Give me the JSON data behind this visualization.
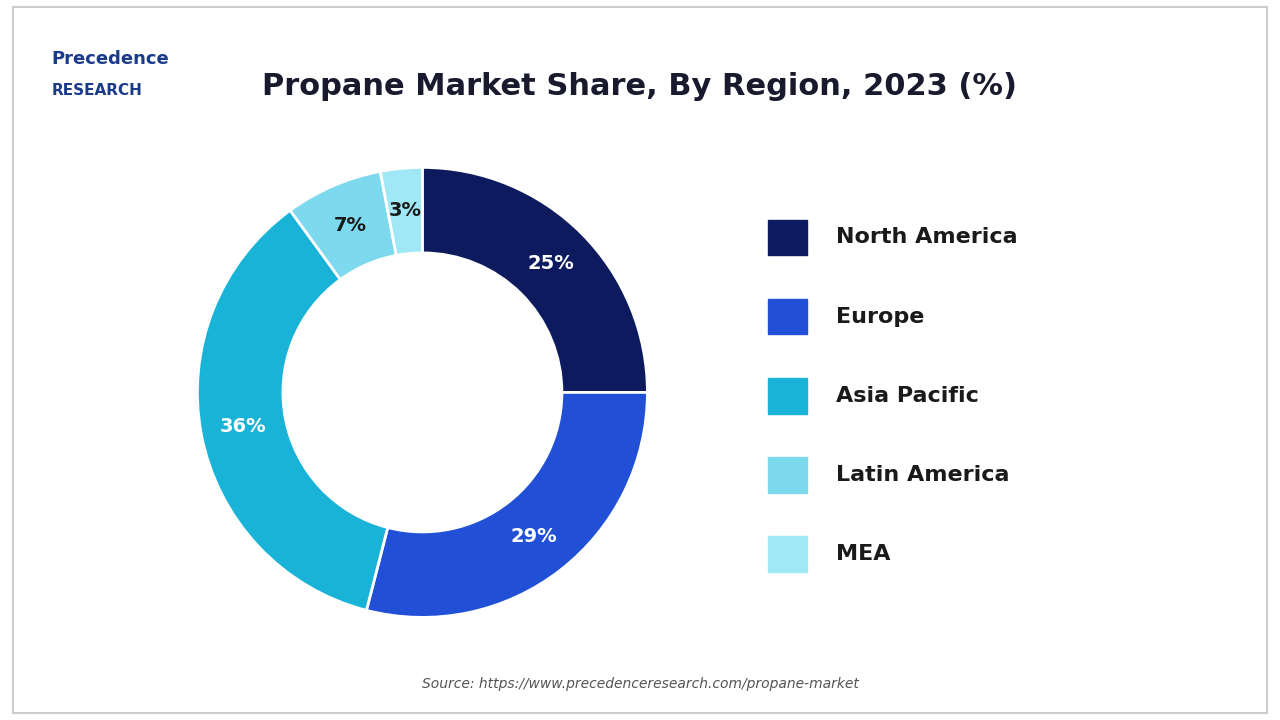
{
  "title": "Propane Market Share, By Region, 2023 (%)",
  "title_fontsize": 22,
  "title_color": "#1a1a2e",
  "labels": [
    "North America",
    "Europe",
    "Asia Pacific",
    "Latin America",
    "MEA"
  ],
  "values": [
    25,
    29,
    36,
    7,
    3
  ],
  "colors": [
    "#0d1b5e",
    "#2150d6",
    "#1ab3d8",
    "#7dd9ee",
    "#a0e8f5"
  ],
  "label_colors": [
    "#ffffff",
    "#ffffff",
    "#ffffff",
    "#1a1a1a",
    "#1a1a1a"
  ],
  "source_text": "Source: https://www.precedenceresearch.com/propane-market",
  "background_color": "#ffffff",
  "border_color": "#cccccc",
  "donut_width": 0.38
}
